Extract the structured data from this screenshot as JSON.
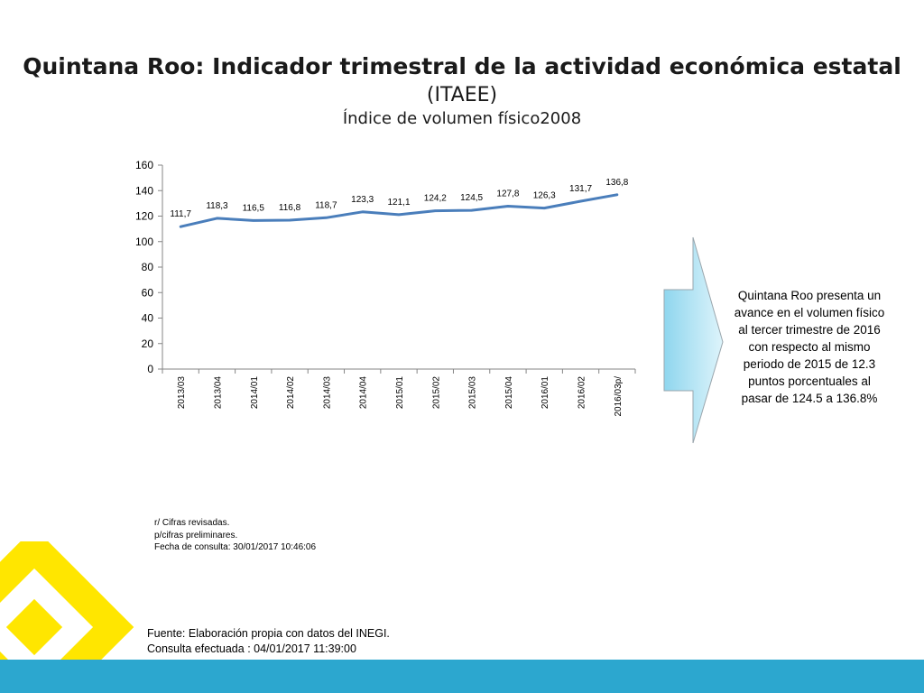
{
  "header": {
    "title_line1": "Quintana Roo: Indicador trimestral de la actividad económica estatal",
    "title_line2": "(ITAEE)",
    "subtitle": "Índice de volumen físico2008"
  },
  "chart_data": {
    "type": "line",
    "categories": [
      "2013/03",
      "2013/04",
      "2014/01",
      "2014/02",
      "2014/03",
      "2014/04",
      "2015/01",
      "2015/02",
      "2015/03",
      "2015/04",
      "2016/01",
      "2016/02",
      "2016/03p/"
    ],
    "values": [
      111.7,
      118.3,
      116.5,
      116.8,
      118.7,
      123.3,
      121.1,
      124.2,
      124.5,
      127.8,
      126.3,
      131.7,
      136.8
    ],
    "data_labels": [
      "111,7",
      "118,3",
      "116,5",
      "116,8",
      "118,7",
      "123,3",
      "121,1",
      "124,2",
      "124,5",
      "127,8",
      "126,3",
      "131,7",
      "136,8"
    ],
    "ylim": [
      0,
      160
    ],
    "yticks": [
      0,
      20,
      40,
      60,
      80,
      100,
      120,
      140,
      160
    ],
    "grid": false,
    "line_color": "#4a7ebb"
  },
  "callout": {
    "text": "Quintana Roo  presenta un avance en el volumen físico al tercer trimestre de 2016 con respecto al mismo periodo de  2015 de 12.3 puntos porcentuales al pasar de 124.5 a 136.8%"
  },
  "notes": {
    "line1": "r/ Cifras revisadas.",
    "line2": "p/cifras preliminares.",
    "line3": "Fecha de consulta: 30/01/2017 10:46:06"
  },
  "source": {
    "line1": "Fuente: Elaboración propia con datos del INEGI.",
    "line2": "Consulta efectuada : 04/01/2017 11:39:00"
  },
  "colors": {
    "accent_yellow": "#ffe600",
    "footer_blue": "#2ca7cf",
    "arrow_fill": "#b7e6f5"
  }
}
